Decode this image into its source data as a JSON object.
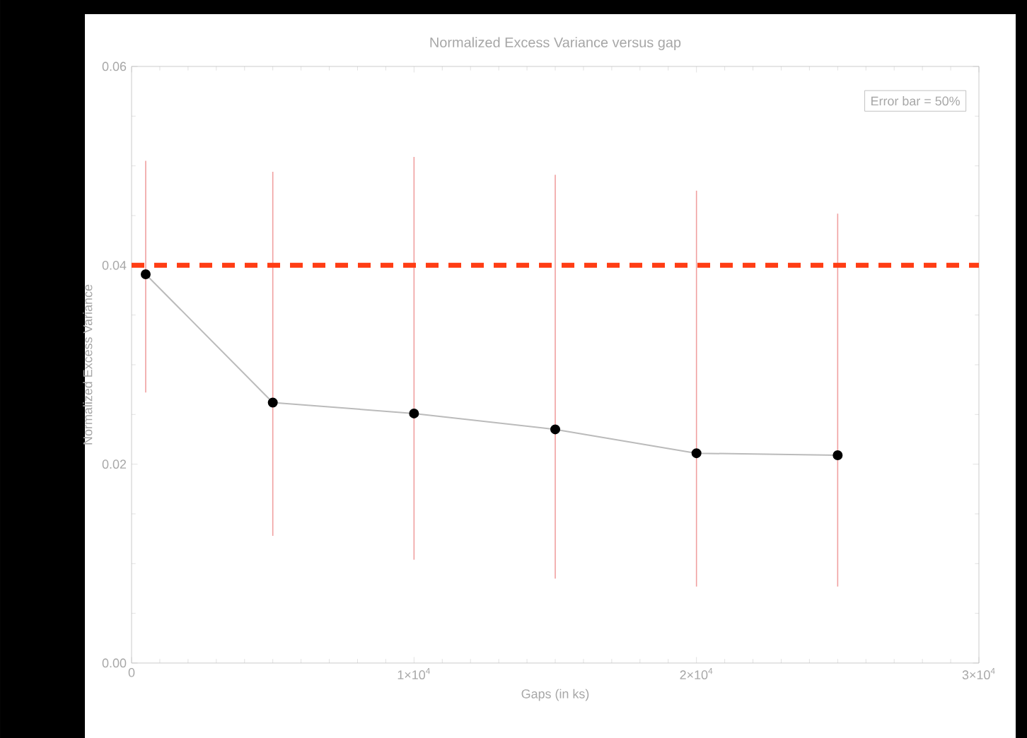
{
  "chart_data": {
    "type": "line",
    "title": "Normalized Excess Variance versus gap",
    "xlabel": "Gaps (in ks)",
    "ylabel": "Normalized Excess Variance",
    "annotations": [
      "Error bar = 50%"
    ],
    "x": [
      500,
      5000,
      10000,
      15000,
      20000,
      25000
    ],
    "series": [
      {
        "color": "#bbbbbb",
        "values": [
          0.0391,
          0.0262,
          0.0251,
          0.0235,
          0.0211,
          0.0209
        ],
        "errors": [
          [
            0.0272,
            0.0505
          ],
          [
            0.0128,
            0.0494
          ],
          [
            0.0104,
            0.0509
          ],
          [
            0.0085,
            0.0491
          ],
          [
            0.0077,
            0.0475
          ],
          [
            0.0077,
            0.0452
          ]
        ]
      }
    ],
    "marker": "circle",
    "xlim": [
      0,
      30000
    ],
    "ylim": [
      0,
      0.06
    ],
    "xticks": [
      0,
      {
        "value": 10000,
        "label": "1×10$^{4}$"
      },
      {
        "value": 20000,
        "label": "2×10$^{4}$"
      },
      {
        "value": 30000,
        "label": "3×10$^{4}$"
      }
    ],
    "yticks": [
      {
        "value": 0,
        "label": "0.00"
      },
      {
        "value": 0.02,
        "label": "0.02"
      },
      {
        "value": 0.04,
        "label": "0.04"
      },
      {
        "value": 0.06,
        "label": "0.06"
      }
    ],
    "ref_lines": [
      {
        "axis": "y",
        "value": 0.04,
        "color": "#ff3d14",
        "line_style": "dashed"
      }
    ],
    "grid": false
  }
}
